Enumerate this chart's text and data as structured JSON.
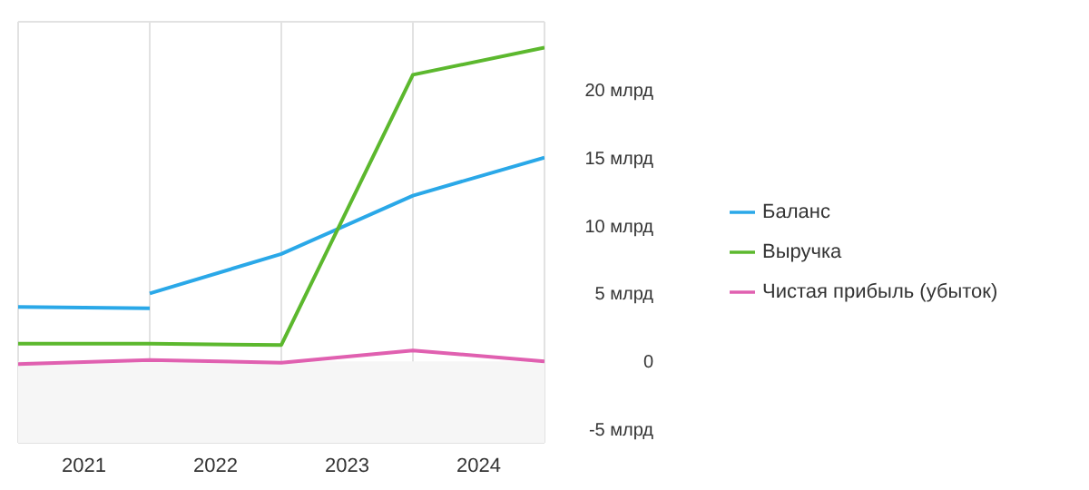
{
  "chart_data": {
    "type": "line",
    "x": [
      2020.5,
      2021.5,
      2022.5,
      2023.5,
      2024.5
    ],
    "xlim": [
      2020.5,
      2024.5
    ],
    "xticks": [
      {
        "value": 2020.5,
        "label": null
      },
      2021,
      {
        "value": 2021.5,
        "label": null
      },
      2022,
      {
        "value": 2022.5,
        "label": null
      },
      2023,
      {
        "value": 2023.5,
        "label": null
      },
      2024,
      {
        "value": 2024.5,
        "label": null
      }
    ],
    "ylim": [
      -6,
      25
    ],
    "yticks": [
      {
        "value": -5,
        "label": "-5 млрд"
      },
      0,
      {
        "value": 5,
        "label": "5 млрд"
      },
      {
        "value": 10,
        "label": "10 млрд"
      },
      {
        "value": 15,
        "label": "15 млрд"
      },
      {
        "value": 20,
        "label": "20 млрд"
      }
    ],
    "series": [
      {
        "name": "Баланс",
        "color": "#2aa8e8",
        "values": [
          4.0,
          3.9,
          null,
          null,
          null
        ]
      },
      {
        "color": "#2aa8e8",
        "values": [
          null,
          5.0,
          7.9,
          12.2,
          15.0
        ]
      },
      {
        "name": "Выручка",
        "color": "#5cb82e",
        "values": [
          1.3,
          1.3,
          1.2,
          21.1,
          23.1
        ]
      },
      {
        "name": "Чистая прибыль (убыток)",
        "color": "#e060b0",
        "values": [
          -0.2,
          0.1,
          -0.1,
          0.8,
          0.0
        ]
      }
    ],
    "bands": [
      {
        "axis": "y",
        "from": -6,
        "to": 0,
        "color": "#f6f6f6"
      }
    ],
    "grid": true,
    "legend": "right",
    "marker": "none",
    "line_style": "solid"
  }
}
